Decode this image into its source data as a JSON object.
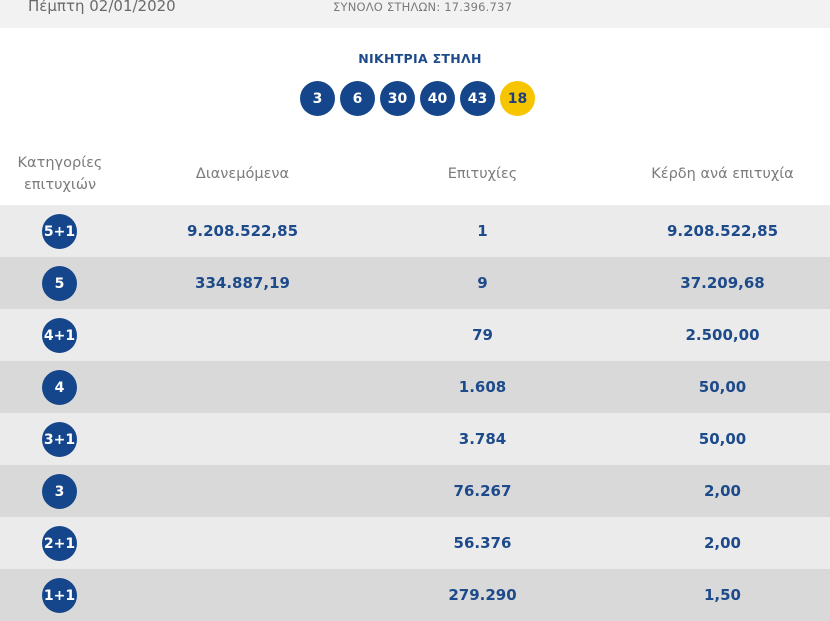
{
  "header": {
    "date": "Πέμπτη 02/01/2020",
    "total_columns": "ΣΥΝΟΛΟ ΣΤΗΛΩΝ: 17.396.737"
  },
  "winning": {
    "title": "ΝΙΚΗΤΡΙΑ ΣΤΗΛΗ",
    "numbers": [
      "3",
      "6",
      "30",
      "40",
      "43"
    ],
    "joker": "18"
  },
  "table": {
    "headers": {
      "category_line1": "Κατηγορίες",
      "category_line2": "επιτυχιών",
      "distributed": "Διανεμόμενα",
      "winners": "Επιτυχίες",
      "prize_per_winner": "Κέρδη ανά επιτυχία"
    },
    "rows": [
      {
        "category": "5+1",
        "distributed": "9.208.522,85",
        "winners": "1",
        "prize": "9.208.522,85"
      },
      {
        "category": "5",
        "distributed": "334.887,19",
        "winners": "9",
        "prize": "37.209,68"
      },
      {
        "category": "4+1",
        "distributed": "",
        "winners": "79",
        "prize": "2.500,00"
      },
      {
        "category": "4",
        "distributed": "",
        "winners": "1.608",
        "prize": "50,00"
      },
      {
        "category": "3+1",
        "distributed": "",
        "winners": "3.784",
        "prize": "50,00"
      },
      {
        "category": "3",
        "distributed": "",
        "winners": "76.267",
        "prize": "2,00"
      },
      {
        "category": "2+1",
        "distributed": "",
        "winners": "56.376",
        "prize": "2,00"
      },
      {
        "category": "1+1",
        "distributed": "",
        "winners": "279.290",
        "prize": "1,50"
      }
    ]
  },
  "colors": {
    "ball_blue": "#15468c",
    "joker_yellow": "#f6c500",
    "row_light": "#ebebeb",
    "row_dark": "#d9d9d9"
  }
}
